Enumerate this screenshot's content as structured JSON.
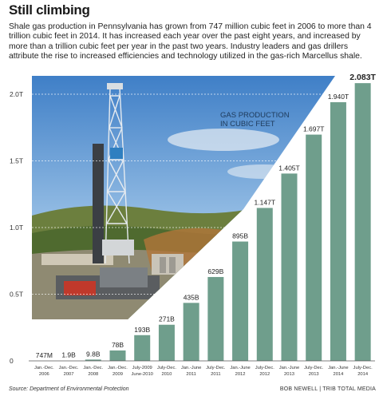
{
  "header": {
    "title": "Still climbing",
    "intro": "Shale gas production in Pennsylvania has grown from 747 million cubic feet in 2006 to more than 4 trillion cubic feet in 2014. It has increased each year over the past eight years, and increased by more than a trillion cubic feet per year in the past two years. Industry leaders and gas drillers attribute the rise to increased efficiencies and technology utilized in the gas-rich Marcellus shale."
  },
  "footer": {
    "source": "Source: Department of Environmental Protection",
    "credit": "BOB NEWELL  |  TRIB TOTAL MEDIA"
  },
  "colors": {
    "bar": "#6f9e8c",
    "sky": "#6d9fd3",
    "ground": "#5f7a3c",
    "axis_text": "#333333",
    "grid": "#ffffff"
  },
  "chart_data": {
    "type": "bar",
    "title": "",
    "annotation": "GAS PRODUCTION\nIN CUBIC FEET",
    "unit": "cubic feet",
    "categories": [
      "Jan.-Dec.\n2006",
      "Jan.-Dec.\n2007",
      "Jan.-Dec.\n2008",
      "Jan.-Dec.\n2009",
      "July-2009\nJune-2010",
      "July-Dec.\n2010",
      "Jan.-June\n2011",
      "July-Dec.\n2011",
      "Jan.-June\n2012",
      "July-Dec.\n2012",
      "Jan.-June\n2013",
      "July-Dec.\n2013",
      "Jan.-June\n2014",
      "July-Dec.\n2014"
    ],
    "values": [
      0.000747,
      0.0019,
      0.0098,
      0.078,
      0.193,
      0.271,
      0.435,
      0.629,
      0.895,
      1.147,
      1.405,
      1.697,
      1.94,
      2.083
    ],
    "value_labels": [
      "747M",
      "1.9B",
      "9.8B",
      "78B",
      "193B",
      "271B",
      "435B",
      "629B",
      "895B",
      "1.147T",
      "1.405T",
      "1.697T",
      "1.940T",
      "2.083T"
    ],
    "value_unit": "trillion cubic feet",
    "ylim": [
      0,
      2.083
    ],
    "yticks": [
      0,
      0.5,
      1.0,
      1.5,
      2.0
    ],
    "ytick_labels": [
      "0",
      "0.5T",
      "1.0T",
      "1.5T",
      "2.0T"
    ],
    "grid": true,
    "background_image": "natural-gas-drilling-rig-photo"
  }
}
